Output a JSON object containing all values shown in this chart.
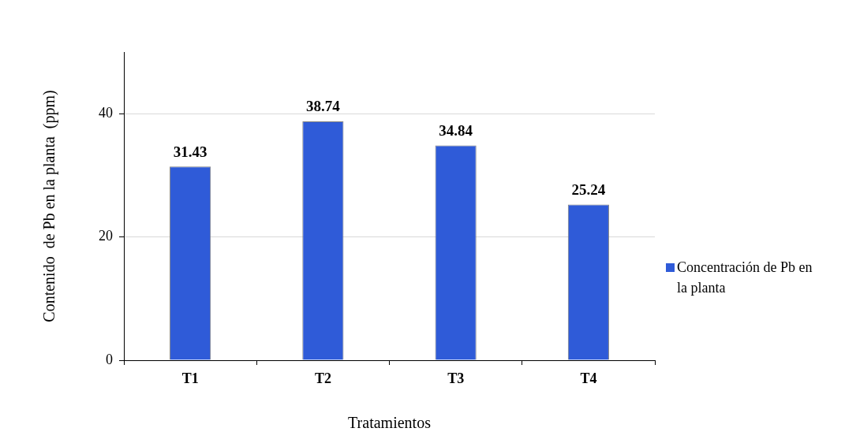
{
  "chart_data": {
    "type": "bar",
    "xlabel": "Tratamientos",
    "ylabel": "Contenido  de Pb en la planta  (ppm)",
    "categories": [
      "T1",
      "T2",
      "T3",
      "T4"
    ],
    "series": [
      {
        "name": "Concentración de Pb en la planta",
        "color": "#2f5bd8",
        "values": [
          31.43,
          38.74,
          34.84,
          25.24
        ]
      }
    ],
    "ylim": [
      0,
      50
    ],
    "yticks": [
      0,
      20,
      40
    ],
    "grid": "y",
    "legend": "right",
    "data_labels": true
  }
}
